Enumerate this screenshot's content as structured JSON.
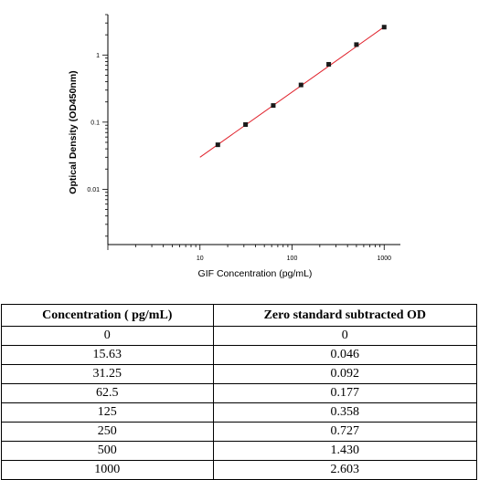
{
  "chart_data": {
    "type": "scatter",
    "xscale": "log",
    "yscale": "log",
    "xlim": [
      1,
      1500
    ],
    "ylim": [
      0.0015,
      4
    ],
    "x_ticks": [
      "10",
      "100",
      "1000"
    ],
    "y_ticks": [
      "0.01",
      "0.1",
      "1"
    ],
    "xlabel": "GIF Concentration (pg/mL)",
    "ylabel": "Optical Density (OD450nm)",
    "grid": false,
    "points": [
      {
        "x": 15.63,
        "y": 0.046
      },
      {
        "x": 31.25,
        "y": 0.092
      },
      {
        "x": 62.5,
        "y": 0.177
      },
      {
        "x": 125,
        "y": 0.358
      },
      {
        "x": 250,
        "y": 0.727
      },
      {
        "x": 500,
        "y": 1.43
      },
      {
        "x": 1000,
        "y": 2.603
      }
    ],
    "fit_line": {
      "x_start": 10,
      "y_start": 0.03,
      "x_end": 1050,
      "y_end": 2.75
    },
    "colors": {
      "points": "#1a1a1a",
      "fit_line": "#e0202a",
      "axes": "#000000"
    }
  },
  "table": {
    "headers": [
      "Concentration ( pg/mL)",
      "Zero standard subtracted OD"
    ],
    "rows": [
      [
        "0",
        "0"
      ],
      [
        "15.63",
        "0.046"
      ],
      [
        "31.25",
        "0.092"
      ],
      [
        "62.5",
        "0.177"
      ],
      [
        "125",
        "0.358"
      ],
      [
        "250",
        "0.727"
      ],
      [
        "500",
        "1.430"
      ],
      [
        "1000",
        "2.603"
      ]
    ]
  }
}
